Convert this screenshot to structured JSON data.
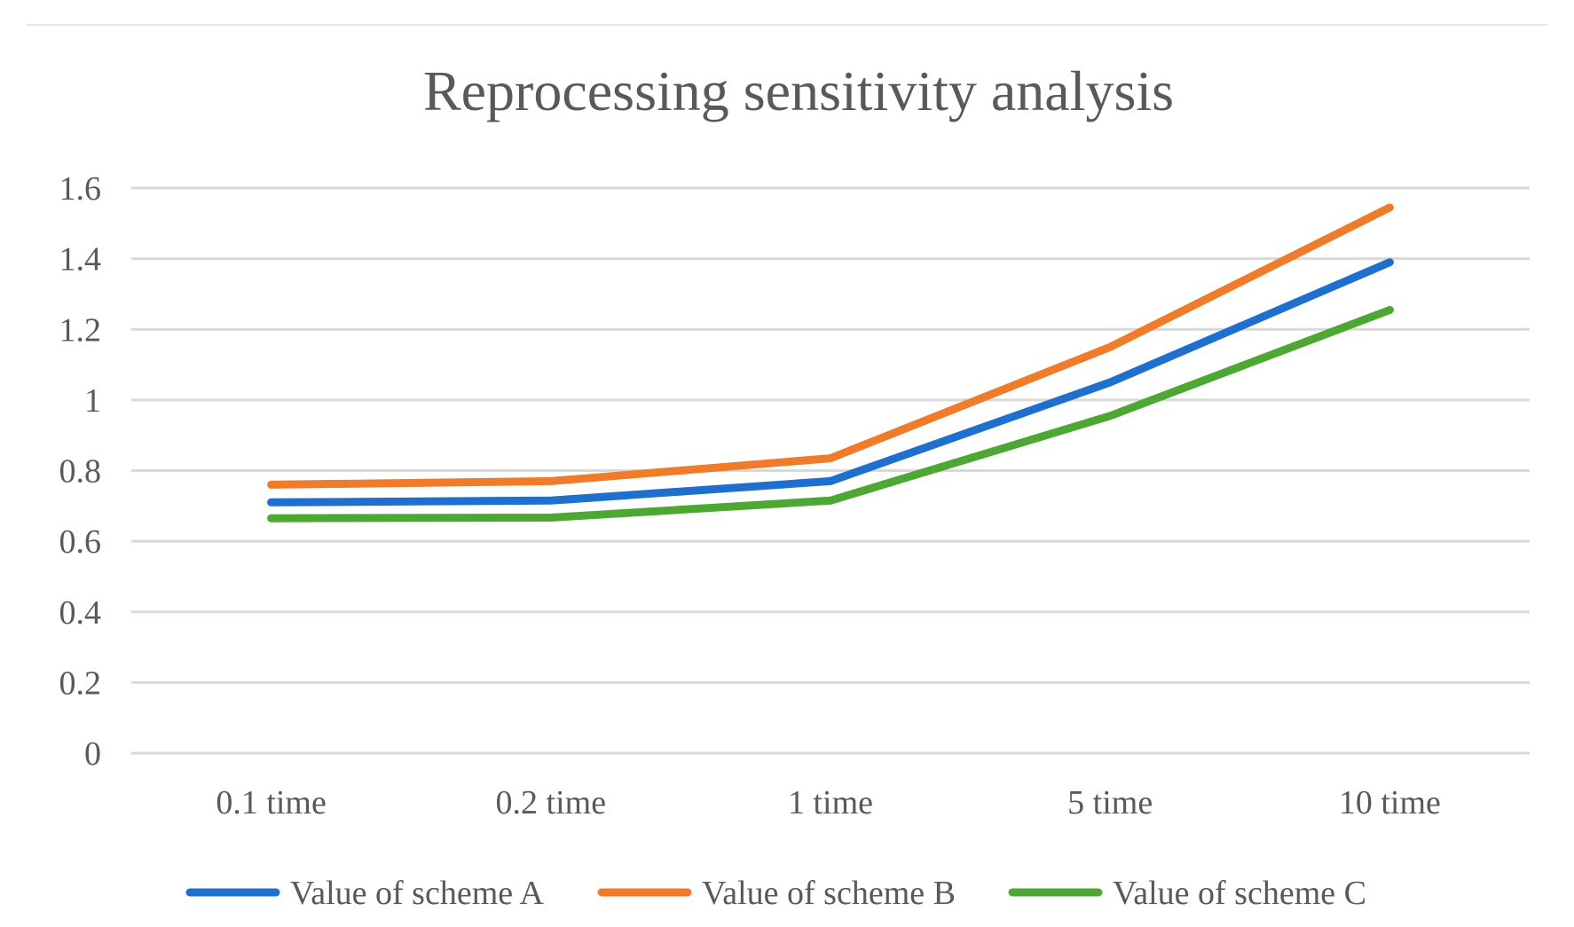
{
  "chart_data": {
    "type": "line",
    "title": "Reprocessing sensitivity analysis",
    "xlabel": "",
    "ylabel": "",
    "categories": [
      "0.1 time",
      "0.2 time",
      "1 time",
      "5 time",
      "10 time"
    ],
    "ylim": [
      0,
      1.6
    ],
    "yticks": [
      0,
      0.2,
      0.4,
      0.6,
      0.8,
      1,
      1.2,
      1.4,
      1.6
    ],
    "ytick_labels": [
      "0",
      "0.2",
      "0.4",
      "0.6",
      "0.8",
      "1",
      "1.2",
      "1.4",
      "1.6"
    ],
    "grid": true,
    "legend_position": "bottom",
    "series": [
      {
        "name": "Value of scheme A",
        "color": "#1f6fcf",
        "values": [
          0.71,
          0.715,
          0.77,
          1.05,
          1.39
        ]
      },
      {
        "name": "Value of scheme B",
        "color": "#f07b2a",
        "values": [
          0.76,
          0.77,
          0.835,
          1.15,
          1.545
        ]
      },
      {
        "name": "Value of scheme C",
        "color": "#4ca832",
        "values": [
          0.665,
          0.667,
          0.715,
          0.955,
          1.255
        ]
      }
    ]
  }
}
